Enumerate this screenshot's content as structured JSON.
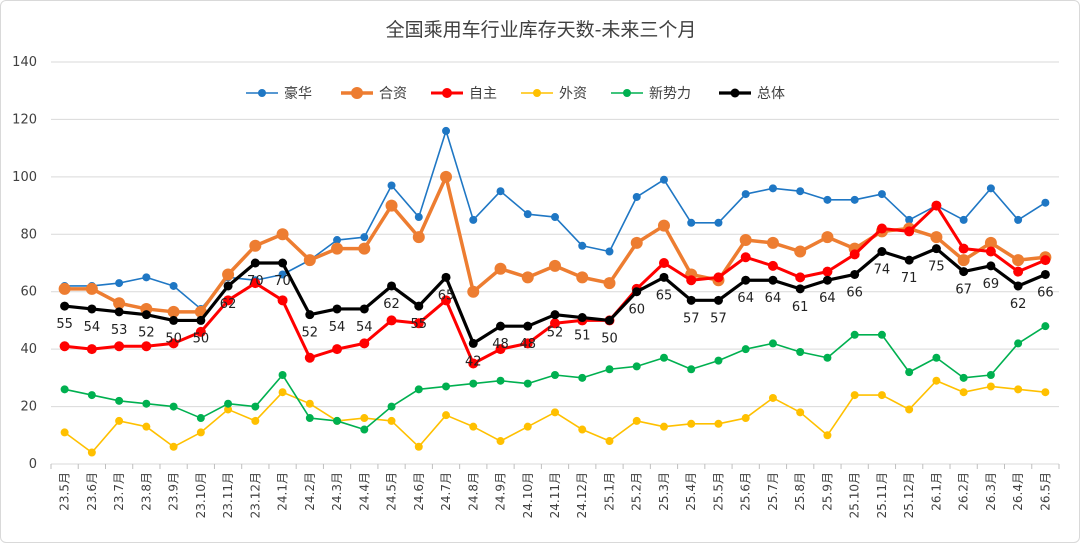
{
  "chart_data": {
    "type": "line",
    "title": "全国乘用车行业库存天数-未来三个月",
    "xlabel": "",
    "ylabel": "",
    "ylim": [
      0,
      140
    ],
    "yticks": [
      0,
      20,
      40,
      60,
      80,
      100,
      120,
      140
    ],
    "grid": "horizontal",
    "legend_position": "top",
    "categories": [
      "23.5月",
      "23.6月",
      "23.7月",
      "23.8月",
      "23.9月",
      "23.10月",
      "23.11月",
      "23.12月",
      "24.1月",
      "24.2月",
      "24.3月",
      "24.4月",
      "24.5月",
      "24.6月",
      "24.7月",
      "24.8月",
      "24.9月",
      "24.10月",
      "24.11月",
      "24.12月",
      "25.1月",
      "25.2月",
      "25.3月",
      "25.4月",
      "25.5月",
      "25.6月",
      "25.7月",
      "25.8月",
      "25.9月",
      "25.10月",
      "25.11月",
      "25.12月",
      "26.1月",
      "26.2月",
      "26.3月",
      "26.4月",
      "26.5月"
    ],
    "series": [
      {
        "name": "豪华",
        "color": "#1f77c4",
        "values": [
          62,
          62,
          63,
          65,
          62,
          54,
          65,
          64,
          66,
          71,
          78,
          79,
          97,
          86,
          116,
          85,
          95,
          87,
          86,
          76,
          74,
          93,
          99,
          84,
          84,
          94,
          96,
          95,
          92,
          92,
          94,
          85,
          90,
          85,
          96,
          85,
          91
        ]
      },
      {
        "name": "合资",
        "color": "#ed7d31",
        "values": [
          61,
          61,
          56,
          54,
          53,
          53,
          66,
          76,
          80,
          71,
          75,
          75,
          90,
          79,
          100,
          60,
          68,
          65,
          69,
          65,
          63,
          77,
          83,
          66,
          64,
          78,
          77,
          74,
          79,
          75,
          81,
          82,
          79,
          71,
          77,
          71,
          72
        ]
      },
      {
        "name": "自主",
        "color": "#ff0000",
        "values": [
          41,
          40,
          41,
          41,
          42,
          46,
          57,
          63,
          57,
          37,
          40,
          42,
          50,
          49,
          57,
          35,
          40,
          42,
          49,
          50,
          50,
          61,
          70,
          64,
          65,
          72,
          69,
          65,
          67,
          73,
          82,
          81,
          90,
          75,
          74,
          67,
          71
        ]
      },
      {
        "name": "外资",
        "color": "#ffc000",
        "values": [
          11,
          4,
          15,
          13,
          6,
          11,
          19,
          15,
          25,
          21,
          15,
          16,
          15,
          6,
          17,
          13,
          8,
          13,
          18,
          12,
          8,
          15,
          13,
          14,
          14,
          16,
          23,
          18,
          10,
          24,
          24,
          19,
          29,
          25,
          27,
          26,
          25
        ]
      },
      {
        "name": "新势力",
        "color": "#00b050",
        "values": [
          26,
          24,
          22,
          21,
          20,
          16,
          21,
          20,
          31,
          16,
          15,
          12,
          20,
          26,
          27,
          28,
          29,
          28,
          31,
          30,
          33,
          34,
          37,
          33,
          36,
          40,
          42,
          39,
          37,
          45,
          45,
          32,
          37,
          30,
          31,
          42,
          48
        ]
      },
      {
        "name": "总体",
        "color": "#000000",
        "values": [
          55,
          54,
          53,
          52,
          50,
          50,
          62,
          70,
          70,
          52,
          54,
          54,
          62,
          55,
          65,
          42,
          48,
          48,
          52,
          51,
          50,
          60,
          65,
          57,
          57,
          64,
          64,
          61,
          64,
          66,
          74,
          71,
          75,
          67,
          69,
          62,
          66
        ]
      }
    ],
    "data_labels": {
      "series": "总体",
      "labels": [
        "55",
        "54",
        "53",
        "52",
        "50",
        "50",
        "62",
        "70",
        "70",
        "52",
        "54",
        "54",
        "62",
        "55",
        "65",
        "42",
        "48",
        "48",
        "52",
        "51",
        "50",
        "60",
        "65",
        "57",
        "57",
        "64",
        "64",
        "61",
        "64",
        "66",
        "74",
        "71",
        "75",
        "67",
        "69",
        "62",
        "66"
      ]
    }
  }
}
